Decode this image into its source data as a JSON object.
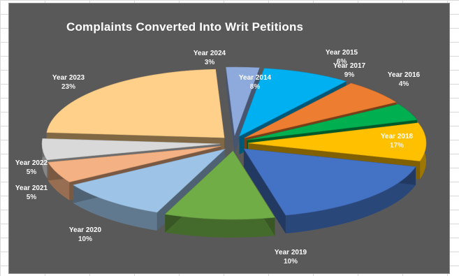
{
  "chart_data": {
    "type": "pie",
    "title": "Complaints Converted Into Writ Petitions",
    "slices": [
      {
        "label": "Year 2014",
        "value_label": "8%",
        "value": 8,
        "color": "#00b0f0"
      },
      {
        "label": "Year 2015",
        "value_label": "6%",
        "value": 6,
        "color": "#ed7d31"
      },
      {
        "label": "Year 2016",
        "value_label": "4%",
        "value": 4,
        "color": "#00b050"
      },
      {
        "label": "Year 2017",
        "value_label": "9%",
        "value": 9,
        "color": "#ffc000"
      },
      {
        "label": "Year 2018",
        "value_label": "17%",
        "value": 17,
        "color": "#4472c4"
      },
      {
        "label": "Year 2019",
        "value_label": "10%",
        "value": 10,
        "color": "#70ad47"
      },
      {
        "label": "Year 2020",
        "value_label": "10%",
        "value": 10,
        "color": "#9dc3e6"
      },
      {
        "label": "Year 2021",
        "value_label": "5%",
        "value": 5,
        "color": "#f4b183"
      },
      {
        "label": "Year 2022",
        "value_label": "5%",
        "value": 5,
        "color": "#d9d9d9"
      },
      {
        "label": "Year 2023",
        "value_label": "23%",
        "value": 23,
        "color": "#ffd08a"
      },
      {
        "label": "Year 2024",
        "value_label": "3%",
        "value": 3,
        "color": "#8ea9db"
      }
    ]
  }
}
